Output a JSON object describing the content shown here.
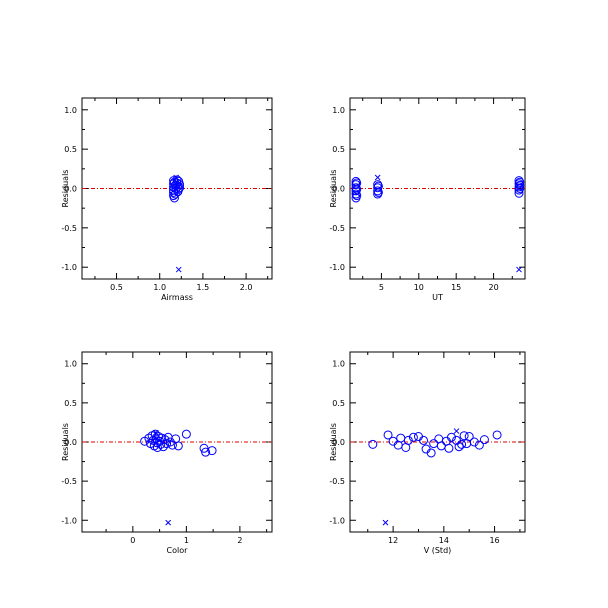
{
  "colors": {
    "marker": "#0000ff",
    "zero_line": "#dd0000",
    "axis": "#000000",
    "background": "#ffffff"
  },
  "chart_data": [
    {
      "type": "scatter",
      "xlabel": "Airmass",
      "ylabel": "Residuals",
      "xlim": [
        0.1,
        2.3
      ],
      "ylim": [
        -1.15,
        1.15
      ],
      "xticks": [
        0.5,
        1.0,
        1.5,
        2.0
      ],
      "xtick_labels": [
        "0.5",
        "1.0",
        "1.5",
        "2.0"
      ],
      "yticks": [
        -1.0,
        -0.5,
        0.0,
        0.5,
        1.0
      ],
      "ytick_labels": [
        "-1.0",
        "-0.5",
        "0.0",
        "0.5",
        "1.0"
      ],
      "reference_line_y": 0.0,
      "circles": [
        {
          "x": 1.16,
          "y": 0.1
        },
        {
          "x": 1.16,
          "y": 0.06
        },
        {
          "x": 1.16,
          "y": 0.02
        },
        {
          "x": 1.16,
          "y": -0.02
        },
        {
          "x": 1.16,
          "y": -0.05
        },
        {
          "x": 1.16,
          "y": -0.09
        },
        {
          "x": 1.17,
          "y": -0.12
        },
        {
          "x": 1.17,
          "y": 0.08
        },
        {
          "x": 1.18,
          "y": 0.04
        },
        {
          "x": 1.18,
          "y": -0.07
        },
        {
          "x": 1.19,
          "y": 0.0
        },
        {
          "x": 1.2,
          "y": 0.11
        },
        {
          "x": 1.2,
          "y": 0.07
        },
        {
          "x": 1.21,
          "y": 0.03
        },
        {
          "x": 1.21,
          "y": -0.04
        },
        {
          "x": 1.22,
          "y": 0.09
        },
        {
          "x": 1.22,
          "y": -0.01
        },
        {
          "x": 1.23,
          "y": 0.05
        },
        {
          "x": 1.23,
          "y": 0.01
        }
      ],
      "crosses": [
        {
          "x": 1.22,
          "y": -1.03
        },
        {
          "x": 1.19,
          "y": 0.14
        }
      ]
    },
    {
      "type": "scatter",
      "xlabel": "UT",
      "ylabel": "Residuals",
      "xlim": [
        0.8,
        24.2
      ],
      "ylim": [
        -1.15,
        1.15
      ],
      "xticks": [
        5,
        10,
        15,
        20
      ],
      "xtick_labels": [
        "5",
        "10",
        "15",
        "20"
      ],
      "yticks": [
        -1.0,
        -0.5,
        0.0,
        0.5,
        1.0
      ],
      "ytick_labels": [
        "-1.0",
        "-0.5",
        "0.0",
        "0.5",
        "1.0"
      ],
      "reference_line_y": 0.0,
      "circles": [
        {
          "x": 1.6,
          "y": 0.09
        },
        {
          "x": 1.6,
          "y": 0.05
        },
        {
          "x": 1.6,
          "y": 0.01
        },
        {
          "x": 1.6,
          "y": -0.03
        },
        {
          "x": 1.6,
          "y": -0.07
        },
        {
          "x": 1.6,
          "y": -0.12
        },
        {
          "x": 1.7,
          "y": 0.07
        },
        {
          "x": 1.7,
          "y": -0.01
        },
        {
          "x": 1.7,
          "y": -0.09
        },
        {
          "x": 4.5,
          "y": 0.05
        },
        {
          "x": 4.5,
          "y": 0.01
        },
        {
          "x": 4.5,
          "y": -0.03
        },
        {
          "x": 4.5,
          "y": -0.07
        },
        {
          "x": 4.6,
          "y": 0.03
        },
        {
          "x": 4.6,
          "y": -0.05
        },
        {
          "x": 23.4,
          "y": 0.1
        },
        {
          "x": 23.4,
          "y": 0.06
        },
        {
          "x": 23.4,
          "y": 0.02
        },
        {
          "x": 23.4,
          "y": -0.02
        },
        {
          "x": 23.4,
          "y": -0.06
        },
        {
          "x": 23.5,
          "y": 0.08
        },
        {
          "x": 23.5,
          "y": 0.04
        },
        {
          "x": 23.5,
          "y": 0.0
        }
      ],
      "crosses": [
        {
          "x": 23.4,
          "y": -1.03
        },
        {
          "x": 4.5,
          "y": 0.14
        }
      ]
    },
    {
      "type": "scatter",
      "xlabel": "Color",
      "ylabel": "Residuals",
      "xlim": [
        -0.95,
        2.6
      ],
      "ylim": [
        -1.15,
        1.15
      ],
      "xticks": [
        0,
        1,
        2
      ],
      "xtick_labels": [
        "0",
        "1",
        "2"
      ],
      "yticks": [
        -1.0,
        -0.5,
        0.0,
        0.5,
        1.0
      ],
      "ytick_labels": [
        "-1.0",
        "-0.5",
        "0.0",
        "0.5",
        "1.0"
      ],
      "reference_line_y": 0.0,
      "circles": [
        {
          "x": 0.22,
          "y": 0.01
        },
        {
          "x": 0.3,
          "y": 0.05
        },
        {
          "x": 0.33,
          "y": -0.02
        },
        {
          "x": 0.36,
          "y": 0.08
        },
        {
          "x": 0.38,
          "y": 0.02
        },
        {
          "x": 0.4,
          "y": -0.05
        },
        {
          "x": 0.42,
          "y": 0.1
        },
        {
          "x": 0.43,
          "y": 0.04
        },
        {
          "x": 0.45,
          "y": -0.01
        },
        {
          "x": 0.46,
          "y": -0.07
        },
        {
          "x": 0.48,
          "y": 0.07
        },
        {
          "x": 0.5,
          "y": 0.01
        },
        {
          "x": 0.52,
          "y": -0.03
        },
        {
          "x": 0.54,
          "y": 0.05
        },
        {
          "x": 0.57,
          "y": -0.06
        },
        {
          "x": 0.6,
          "y": 0.03
        },
        {
          "x": 0.63,
          "y": -0.02
        },
        {
          "x": 0.66,
          "y": 0.06
        },
        {
          "x": 0.7,
          "y": 0.0
        },
        {
          "x": 0.74,
          "y": -0.04
        },
        {
          "x": 0.8,
          "y": 0.04
        },
        {
          "x": 0.85,
          "y": -0.05
        },
        {
          "x": 1.0,
          "y": 0.1
        },
        {
          "x": 1.33,
          "y": -0.08
        },
        {
          "x": 1.36,
          "y": -0.13
        },
        {
          "x": 1.48,
          "y": -0.11
        }
      ],
      "crosses": [
        {
          "x": 0.66,
          "y": -1.03
        },
        {
          "x": 0.43,
          "y": 0.12
        }
      ]
    },
    {
      "type": "scatter",
      "xlabel": "V (Std)",
      "ylabel": "Residuals",
      "xlim": [
        10.3,
        17.2
      ],
      "ylim": [
        -1.15,
        1.15
      ],
      "xticks": [
        12,
        14,
        16
      ],
      "xtick_labels": [
        "12",
        "14",
        "16"
      ],
      "yticks": [
        -1.0,
        -0.5,
        0.0,
        0.5,
        1.0
      ],
      "ytick_labels": [
        "-1.0",
        "-0.5",
        "0.0",
        "0.5",
        "1.0"
      ],
      "reference_line_y": 0.0,
      "circles": [
        {
          "x": 11.2,
          "y": -0.03
        },
        {
          "x": 11.8,
          "y": 0.09
        },
        {
          "x": 12.0,
          "y": 0.01
        },
        {
          "x": 12.2,
          "y": -0.04
        },
        {
          "x": 12.3,
          "y": 0.05
        },
        {
          "x": 12.5,
          "y": -0.07
        },
        {
          "x": 12.6,
          "y": 0.02
        },
        {
          "x": 12.8,
          "y": 0.06
        },
        {
          "x": 13.0,
          "y": 0.07
        },
        {
          "x": 13.2,
          "y": 0.02
        },
        {
          "x": 13.3,
          "y": -0.09
        },
        {
          "x": 13.5,
          "y": -0.14
        },
        {
          "x": 13.6,
          "y": -0.02
        },
        {
          "x": 13.8,
          "y": 0.04
        },
        {
          "x": 13.9,
          "y": -0.05
        },
        {
          "x": 14.1,
          "y": 0.01
        },
        {
          "x": 14.2,
          "y": -0.08
        },
        {
          "x": 14.3,
          "y": 0.06
        },
        {
          "x": 14.5,
          "y": 0.02
        },
        {
          "x": 14.6,
          "y": -0.06
        },
        {
          "x": 14.7,
          "y": -0.03
        },
        {
          "x": 14.8,
          "y": 0.08
        },
        {
          "x": 14.9,
          "y": -0.02
        },
        {
          "x": 15.0,
          "y": 0.07
        },
        {
          "x": 15.2,
          "y": 0.0
        },
        {
          "x": 15.4,
          "y": -0.04
        },
        {
          "x": 15.6,
          "y": 0.03
        },
        {
          "x": 16.1,
          "y": 0.09
        }
      ],
      "crosses": [
        {
          "x": 11.7,
          "y": -1.03
        },
        {
          "x": 14.5,
          "y": 0.14
        }
      ]
    }
  ]
}
